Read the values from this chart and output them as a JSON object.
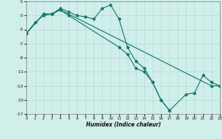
{
  "xlabel": "Humidex (Indice chaleur)",
  "line_color": "#1e7b6e",
  "bg_color": "#d0eeea",
  "grid_color": "#acd8d2",
  "xlim": [
    0,
    23
  ],
  "ylim": [
    -17,
    -1
  ],
  "xticks": [
    0,
    1,
    2,
    3,
    4,
    5,
    6,
    7,
    8,
    9,
    10,
    11,
    12,
    13,
    14,
    15,
    16,
    17,
    18,
    19,
    20,
    21,
    22,
    23
  ],
  "yticks": [
    -1,
    -3,
    -5,
    -7,
    -9,
    -11,
    -13,
    -15,
    -17
  ],
  "s1_x": [
    0,
    1,
    2,
    3,
    4,
    5,
    6,
    7,
    8,
    9,
    10,
    11,
    12,
    13,
    14,
    15,
    16,
    17
  ],
  "s1_y": [
    -5.5,
    -4.0,
    -3.0,
    -2.8,
    -2.0,
    -2.5,
    -3.0,
    -3.2,
    -3.5,
    -2.0,
    -1.5,
    -3.5,
    -7.5,
    -9.5,
    -10.5,
    -12.5,
    -15.0,
    -16.5
  ],
  "s2_x": [
    0,
    2,
    3,
    4,
    5,
    11,
    12,
    13,
    14,
    15,
    16,
    17,
    19,
    20,
    21,
    22,
    23
  ],
  "s2_y": [
    -5.5,
    -2.8,
    -2.8,
    -2.2,
    -3.0,
    -7.5,
    -8.5,
    -10.5,
    -11.0,
    -12.5,
    -15.0,
    -16.5,
    -14.2,
    -14.0,
    -11.5,
    -12.5,
    -13.0
  ],
  "s3_x": [
    0,
    2,
    3,
    4,
    22,
    23
  ],
  "s3_y": [
    -5.5,
    -2.8,
    -2.8,
    -2.2,
    -13.0,
    -13.0
  ],
  "marker": "D",
  "marker_size": 2.0,
  "line_width": 0.9
}
